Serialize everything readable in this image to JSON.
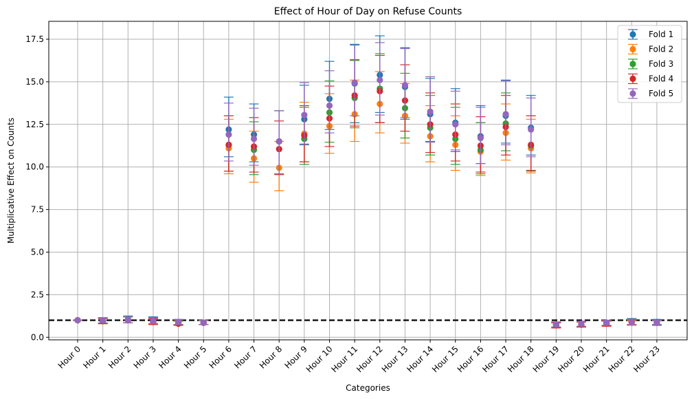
{
  "chart_data": {
    "type": "scatter",
    "title": "Effect of Hour of Day on Refuse Counts",
    "xlabel": "Categories",
    "ylabel": "Multiplicative Effect on Counts",
    "ylim": [
      -0.15,
      18.55
    ],
    "yticks": [
      0.0,
      2.5,
      5.0,
      7.5,
      10.0,
      12.5,
      15.0,
      17.5
    ],
    "ytick_labels": [
      "0.0",
      "2.5",
      "5.0",
      "7.5",
      "10.0",
      "12.5",
      "15.0",
      "17.5"
    ],
    "grid": true,
    "legend_position": "top-right",
    "reference_line": {
      "y": 1.0,
      "style": "dashed",
      "color": "#000000"
    },
    "categories": [
      "Hour 0",
      "Hour 1",
      "Hour 2",
      "Hour 3",
      "Hour 4",
      "Hour 5",
      "Hour 6",
      "Hour 7",
      "Hour 8",
      "Hour 9",
      "Hour 10",
      "Hour 11",
      "Hour 12",
      "Hour 13",
      "Hour 14",
      "Hour 15",
      "Hour 16",
      "Hour 17",
      "Hour 18",
      "Hour 19",
      "Hour 20",
      "Hour 21",
      "Hour 22",
      "Hour 23"
    ],
    "series": [
      {
        "name": "Fold 1",
        "color": "#1f77b4",
        "values": [
          1.0,
          0.95,
          1.05,
          1.0,
          0.85,
          0.85,
          12.2,
          11.9,
          11.5,
          12.8,
          14.0,
          14.9,
          15.4,
          14.7,
          13.1,
          12.6,
          11.8,
          13.0,
          12.3,
          0.75,
          0.75,
          0.85,
          0.9,
          0.9
        ],
        "lower": [
          1.0,
          0.8,
          0.85,
          0.8,
          0.75,
          0.75,
          10.6,
          10.3,
          9.6,
          11.3,
          12.2,
          12.6,
          13.2,
          12.8,
          11.5,
          10.9,
          10.2,
          11.4,
          10.7,
          0.6,
          0.6,
          0.7,
          0.75,
          0.75
        ],
        "upper": [
          1.0,
          1.15,
          1.25,
          1.2,
          1.05,
          1.0,
          14.1,
          13.7,
          13.3,
          14.8,
          16.2,
          17.2,
          17.7,
          17.0,
          15.2,
          14.6,
          13.6,
          15.1,
          14.2,
          0.9,
          0.9,
          1.0,
          1.1,
          1.05
        ]
      },
      {
        "name": "Fold 2",
        "color": "#ff7f0e",
        "values": [
          1.0,
          0.95,
          1.0,
          0.9,
          0.85,
          0.85,
          11.1,
          10.5,
          9.95,
          11.95,
          12.4,
          13.1,
          13.7,
          13.0,
          11.8,
          11.3,
          10.9,
          12.0,
          11.1,
          0.7,
          0.75,
          0.8,
          0.85,
          0.85
        ],
        "lower": [
          1.0,
          0.8,
          0.85,
          0.75,
          0.7,
          0.75,
          9.6,
          9.1,
          8.6,
          10.3,
          10.8,
          11.5,
          12.0,
          11.4,
          10.3,
          9.8,
          9.5,
          10.4,
          9.65,
          0.55,
          0.6,
          0.65,
          0.7,
          0.7
        ],
        "upper": [
          1.0,
          1.15,
          1.2,
          1.1,
          1.0,
          1.0,
          12.8,
          12.1,
          11.5,
          13.8,
          14.3,
          15.1,
          15.6,
          14.9,
          13.6,
          13.0,
          12.6,
          13.7,
          12.8,
          0.85,
          0.9,
          0.95,
          1.0,
          1.0
        ]
      },
      {
        "name": "Fold 3",
        "color": "#2ca02c",
        "values": [
          1.0,
          0.95,
          1.0,
          0.95,
          0.85,
          0.85,
          11.3,
          11.0,
          11.5,
          11.65,
          13.2,
          14.05,
          14.6,
          13.45,
          12.3,
          11.65,
          11.0,
          12.55,
          11.25,
          0.75,
          0.75,
          0.85,
          0.9,
          0.85
        ],
        "lower": [
          1.0,
          0.8,
          0.85,
          0.8,
          0.75,
          0.75,
          9.75,
          9.55,
          9.6,
          10.15,
          11.45,
          12.3,
          12.6,
          11.7,
          10.7,
          10.15,
          9.6,
          10.95,
          9.75,
          0.6,
          0.6,
          0.7,
          0.75,
          0.7
        ],
        "upper": [
          1.0,
          1.15,
          1.2,
          1.15,
          1.0,
          1.0,
          13.0,
          12.65,
          13.3,
          13.5,
          15.05,
          16.25,
          16.65,
          15.5,
          14.2,
          13.5,
          12.6,
          14.35,
          13.0,
          0.9,
          0.9,
          1.0,
          1.05,
          1.0
        ]
      },
      {
        "name": "Fold 4",
        "color": "#d62728",
        "values": [
          1.0,
          0.95,
          1.0,
          0.9,
          0.8,
          0.85,
          11.3,
          11.2,
          11.05,
          11.85,
          12.85,
          14.2,
          14.45,
          13.9,
          12.5,
          11.9,
          11.25,
          12.35,
          11.3,
          0.7,
          0.75,
          0.8,
          0.9,
          0.85
        ],
        "lower": [
          1.0,
          0.8,
          0.85,
          0.75,
          0.7,
          0.75,
          9.75,
          9.7,
          9.55,
          10.3,
          11.2,
          12.4,
          12.6,
          12.1,
          10.85,
          10.35,
          9.7,
          10.7,
          9.8,
          0.55,
          0.6,
          0.65,
          0.75,
          0.7
        ],
        "upper": [
          1.0,
          1.1,
          1.2,
          1.1,
          0.95,
          1.0,
          13.0,
          12.9,
          12.7,
          13.6,
          14.75,
          16.3,
          16.55,
          16.0,
          14.35,
          13.7,
          12.95,
          14.2,
          13.0,
          0.85,
          0.9,
          0.95,
          1.05,
          1.0
        ]
      },
      {
        "name": "Fold 5",
        "color": "#9467bd",
        "values": [
          1.0,
          1.0,
          1.0,
          0.95,
          0.9,
          0.85,
          11.9,
          11.65,
          11.5,
          13.05,
          13.6,
          14.95,
          15.1,
          14.8,
          13.25,
          12.5,
          11.7,
          13.1,
          12.2,
          0.75,
          0.8,
          0.85,
          0.9,
          0.85
        ],
        "lower": [
          1.0,
          0.85,
          0.85,
          0.8,
          0.75,
          0.75,
          10.35,
          10.1,
          9.6,
          11.35,
          12.0,
          13.0,
          13.05,
          12.9,
          11.45,
          11.0,
          10.2,
          11.3,
          10.6,
          0.6,
          0.65,
          0.7,
          0.75,
          0.7
        ],
        "upper": [
          1.0,
          1.15,
          1.2,
          1.15,
          1.05,
          1.0,
          13.75,
          13.45,
          13.3,
          14.95,
          15.65,
          17.15,
          17.3,
          16.95,
          15.3,
          14.45,
          13.5,
          15.05,
          14.05,
          0.9,
          0.95,
          1.0,
          1.05,
          1.0
        ]
      }
    ]
  }
}
